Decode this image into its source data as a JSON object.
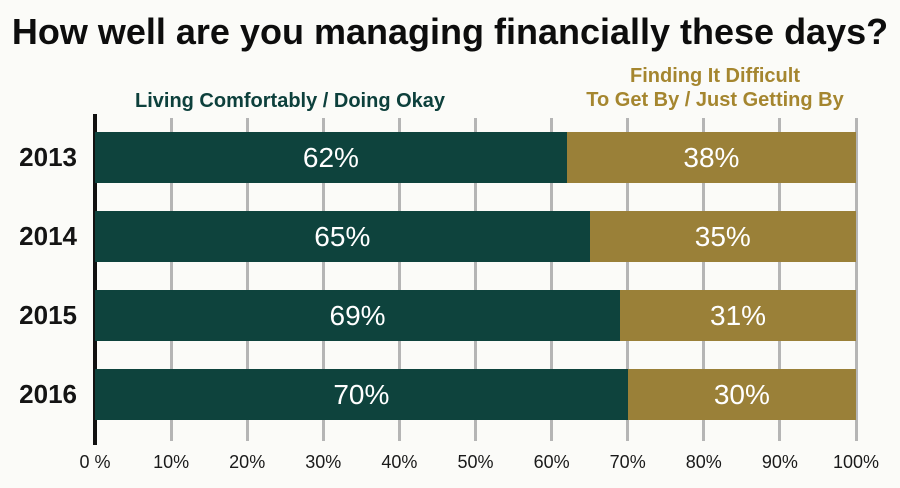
{
  "page": {
    "background_color": "#fbfbf8"
  },
  "title": "How well are you managing financially these days?",
  "legend": {
    "series1_label": "Living Comfortably / Doing Okay",
    "series1_color": "#0d403c",
    "series2_line1": "Finding It Difficult",
    "series2_line2": "To Get By / Just Getting By",
    "series2_color": "#a5862f"
  },
  "chart_data": {
    "type": "bar",
    "orientation": "horizontal",
    "stacked": true,
    "title": "How well are you managing financially these days?",
    "categories": [
      "2013",
      "2014",
      "2015",
      "2016"
    ],
    "series": [
      {
        "name": "Living Comfortably / Doing Okay",
        "color": "#0e433d",
        "values": [
          62,
          65,
          69,
          70
        ]
      },
      {
        "name": "Finding It Difficult To Get By / Just Getting By",
        "color": "#9a8038",
        "values": [
          38,
          35,
          31,
          30
        ]
      }
    ],
    "value_label_format": "{v}%",
    "value_label_color": "#ffffff",
    "xlim": [
      0,
      100
    ],
    "x_ticks": [
      "0 %",
      "10%",
      "20%",
      "30%",
      "40%",
      "50%",
      "60%",
      "70%",
      "80%",
      "90%",
      "100%"
    ],
    "grid": true,
    "gridline_color": "#b5b5b5",
    "axis_color": "#111111",
    "legend_position": "top"
  }
}
